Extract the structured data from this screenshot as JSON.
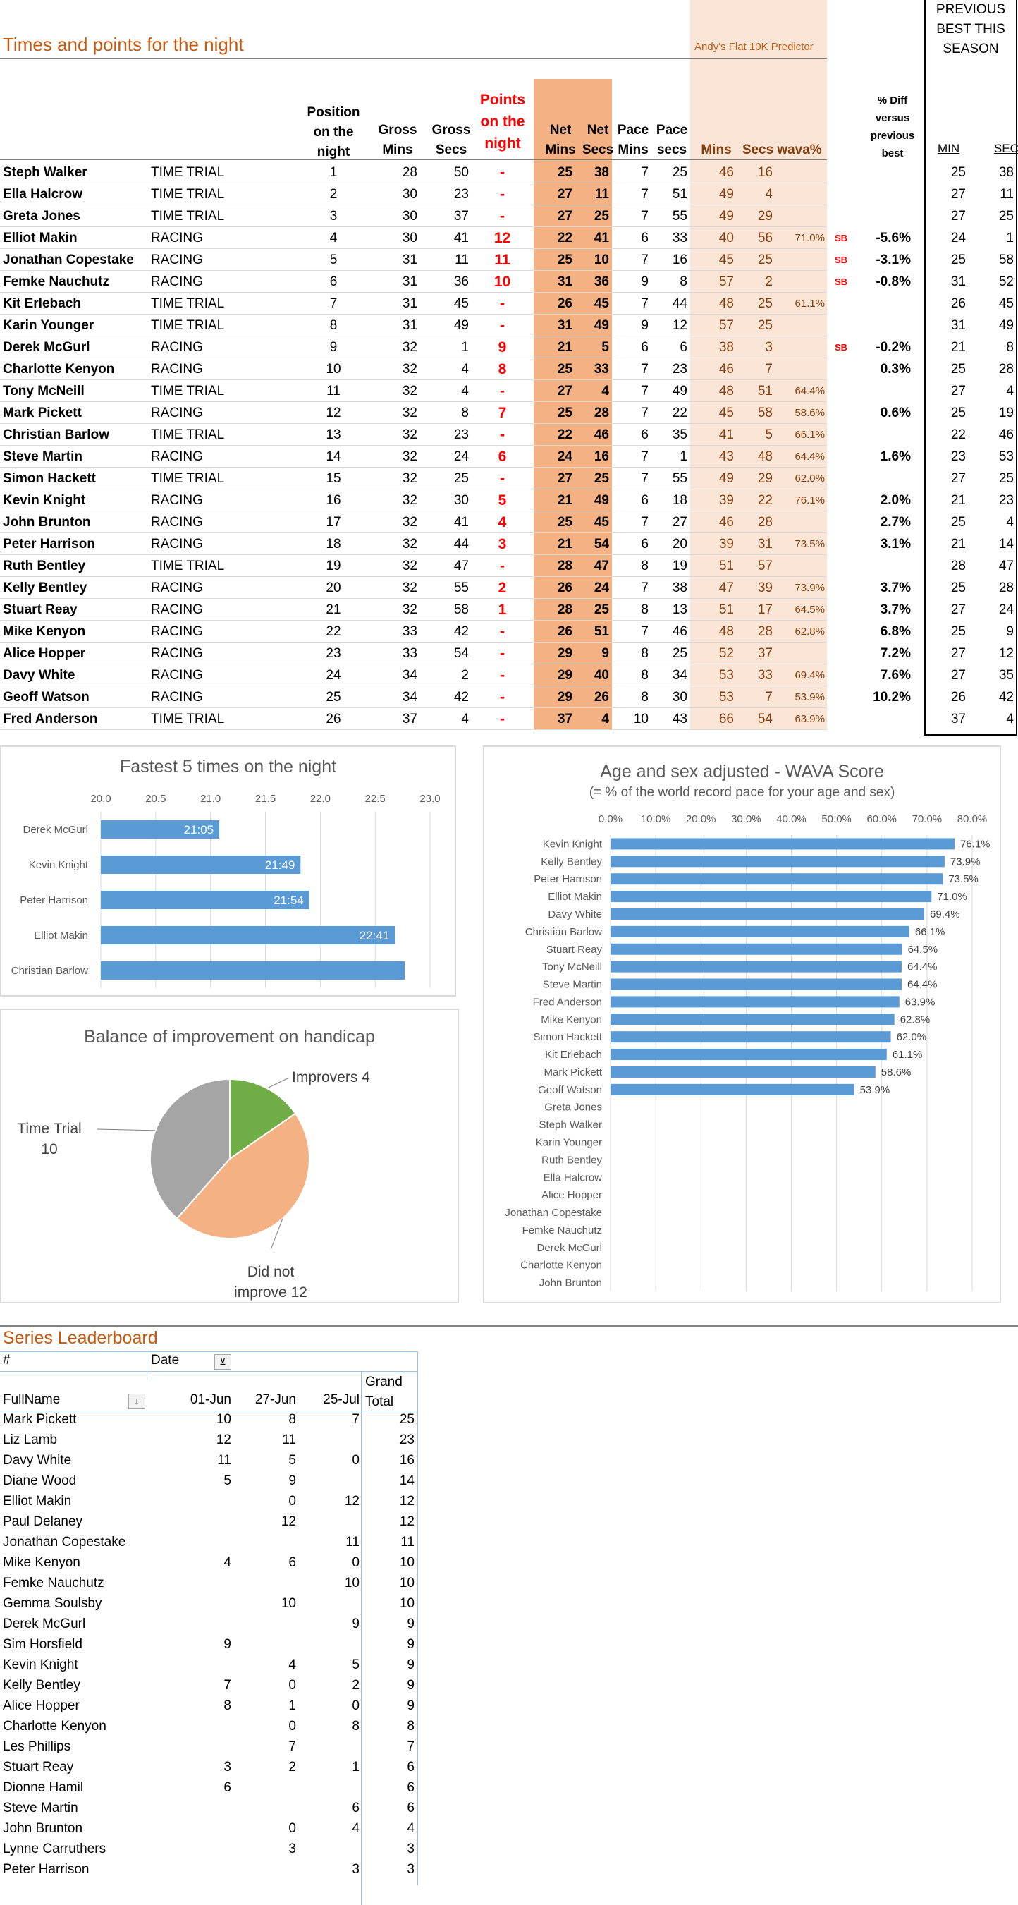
{
  "header": {
    "title": "Times and points for the night",
    "predictor": "Andy's Flat 10K Predictor",
    "prev_best": "PREVIOUS\nBEST THIS\nSEASON"
  },
  "columns": {
    "position": "Position\non the\nnight",
    "gross_mins": "Gross\nMins",
    "gross_secs": "Gross\nSecs",
    "points": "Points\non the\nnight",
    "net_mins": "Net\nMins",
    "net_secs": "Net\nSecs",
    "pace_mins": "Pace\nMins",
    "pace_secs": "Pace\nsecs",
    "pred_mins": "Mins",
    "pred_secs": "Secs",
    "wava": "wava%",
    "diff": "% Diff\nversus\nprevious\nbest",
    "min": "MIN",
    "sec": "SEC"
  },
  "colors": {
    "accent": "#c55a11",
    "net_fill": "#f4b183",
    "pred_fill": "#fbe5d6",
    "bar_blue": "#5b9bd5",
    "pie_green": "#70ad47",
    "pie_orange": "#f4b183",
    "pie_grey": "#a5a5a5"
  },
  "results": [
    {
      "name": "Steph Walker",
      "type": "TIME TRIAL",
      "pos": "1",
      "gm": "28",
      "gs": "50",
      "pts": "-",
      "nm": "25",
      "ns": "38",
      "pm": "7",
      "ps": "25",
      "prm": "46",
      "prs": "16",
      "wava": "",
      "sb": "",
      "diff": "",
      "min": "25",
      "sec": "38"
    },
    {
      "name": "Ella Halcrow",
      "type": "TIME TRIAL",
      "pos": "2",
      "gm": "30",
      "gs": "23",
      "pts": "-",
      "nm": "27",
      "ns": "11",
      "pm": "7",
      "ps": "51",
      "prm": "49",
      "prs": "4",
      "wava": "",
      "sb": "",
      "diff": "",
      "min": "27",
      "sec": "11"
    },
    {
      "name": "Greta Jones",
      "type": "TIME TRIAL",
      "pos": "3",
      "gm": "30",
      "gs": "37",
      "pts": "-",
      "nm": "27",
      "ns": "25",
      "pm": "7",
      "ps": "55",
      "prm": "49",
      "prs": "29",
      "wava": "",
      "sb": "",
      "diff": "",
      "min": "27",
      "sec": "25"
    },
    {
      "name": "Elliot Makin",
      "type": "RACING",
      "pos": "4",
      "gm": "30",
      "gs": "41",
      "pts": "12",
      "nm": "22",
      "ns": "41",
      "pm": "6",
      "ps": "33",
      "prm": "40",
      "prs": "56",
      "wava": "71.0%",
      "sb": "SB",
      "diff": "-5.6%",
      "min": "24",
      "sec": "1"
    },
    {
      "name": "Jonathan Copestake",
      "type": "RACING",
      "pos": "5",
      "gm": "31",
      "gs": "11",
      "pts": "11",
      "nm": "25",
      "ns": "10",
      "pm": "7",
      "ps": "16",
      "prm": "45",
      "prs": "25",
      "wava": "",
      "sb": "SB",
      "diff": "-3.1%",
      "min": "25",
      "sec": "58"
    },
    {
      "name": "Femke Nauchutz",
      "type": "RACING",
      "pos": "6",
      "gm": "31",
      "gs": "36",
      "pts": "10",
      "nm": "31",
      "ns": "36",
      "pm": "9",
      "ps": "8",
      "prm": "57",
      "prs": "2",
      "wava": "",
      "sb": "SB",
      "diff": "-0.8%",
      "min": "31",
      "sec": "52"
    },
    {
      "name": "Kit Erlebach",
      "type": "TIME TRIAL",
      "pos": "7",
      "gm": "31",
      "gs": "45",
      "pts": "-",
      "nm": "26",
      "ns": "45",
      "pm": "7",
      "ps": "44",
      "prm": "48",
      "prs": "25",
      "wava": "61.1%",
      "sb": "",
      "diff": "",
      "min": "26",
      "sec": "45"
    },
    {
      "name": "Karin Younger",
      "type": "TIME TRIAL",
      "pos": "8",
      "gm": "31",
      "gs": "49",
      "pts": "-",
      "nm": "31",
      "ns": "49",
      "pm": "9",
      "ps": "12",
      "prm": "57",
      "prs": "25",
      "wava": "",
      "sb": "",
      "diff": "",
      "min": "31",
      "sec": "49"
    },
    {
      "name": "Derek McGurl",
      "type": "RACING",
      "pos": "9",
      "gm": "32",
      "gs": "1",
      "pts": "9",
      "nm": "21",
      "ns": "5",
      "pm": "6",
      "ps": "6",
      "prm": "38",
      "prs": "3",
      "wava": "",
      "sb": "SB",
      "diff": "-0.2%",
      "min": "21",
      "sec": "8"
    },
    {
      "name": "Charlotte Kenyon",
      "type": "RACING",
      "pos": "10",
      "gm": "32",
      "gs": "4",
      "pts": "8",
      "nm": "25",
      "ns": "33",
      "pm": "7",
      "ps": "23",
      "prm": "46",
      "prs": "7",
      "wava": "",
      "sb": "",
      "diff": "0.3%",
      "min": "25",
      "sec": "28"
    },
    {
      "name": "Tony McNeill",
      "type": "TIME TRIAL",
      "pos": "11",
      "gm": "32",
      "gs": "4",
      "pts": "-",
      "nm": "27",
      "ns": "4",
      "pm": "7",
      "ps": "49",
      "prm": "48",
      "prs": "51",
      "wava": "64.4%",
      "sb": "",
      "diff": "",
      "min": "27",
      "sec": "4"
    },
    {
      "name": "Mark Pickett",
      "type": "RACING",
      "pos": "12",
      "gm": "32",
      "gs": "8",
      "pts": "7",
      "nm": "25",
      "ns": "28",
      "pm": "7",
      "ps": "22",
      "prm": "45",
      "prs": "58",
      "wava": "58.6%",
      "sb": "",
      "diff": "0.6%",
      "min": "25",
      "sec": "19"
    },
    {
      "name": "Christian Barlow",
      "type": "TIME TRIAL",
      "pos": "13",
      "gm": "32",
      "gs": "23",
      "pts": "-",
      "nm": "22",
      "ns": "46",
      "pm": "6",
      "ps": "35",
      "prm": "41",
      "prs": "5",
      "wava": "66.1%",
      "sb": "",
      "diff": "",
      "min": "22",
      "sec": "46"
    },
    {
      "name": "Steve Martin",
      "type": "RACING",
      "pos": "14",
      "gm": "32",
      "gs": "24",
      "pts": "6",
      "nm": "24",
      "ns": "16",
      "pm": "7",
      "ps": "1",
      "prm": "43",
      "prs": "48",
      "wava": "64.4%",
      "sb": "",
      "diff": "1.6%",
      "min": "23",
      "sec": "53"
    },
    {
      "name": "Simon Hackett",
      "type": "TIME TRIAL",
      "pos": "15",
      "gm": "32",
      "gs": "25",
      "pts": "-",
      "nm": "27",
      "ns": "25",
      "pm": "7",
      "ps": "55",
      "prm": "49",
      "prs": "29",
      "wava": "62.0%",
      "sb": "",
      "diff": "",
      "min": "27",
      "sec": "25"
    },
    {
      "name": "Kevin Knight",
      "type": "RACING",
      "pos": "16",
      "gm": "32",
      "gs": "30",
      "pts": "5",
      "nm": "21",
      "ns": "49",
      "pm": "6",
      "ps": "18",
      "prm": "39",
      "prs": "22",
      "wava": "76.1%",
      "sb": "",
      "diff": "2.0%",
      "min": "21",
      "sec": "23"
    },
    {
      "name": "John Brunton",
      "type": "RACING",
      "pos": "17",
      "gm": "32",
      "gs": "41",
      "pts": "4",
      "nm": "25",
      "ns": "45",
      "pm": "7",
      "ps": "27",
      "prm": "46",
      "prs": "28",
      "wava": "",
      "sb": "",
      "diff": "2.7%",
      "min": "25",
      "sec": "4"
    },
    {
      "name": "Peter Harrison",
      "type": "RACING",
      "pos": "18",
      "gm": "32",
      "gs": "44",
      "pts": "3",
      "nm": "21",
      "ns": "54",
      "pm": "6",
      "ps": "20",
      "prm": "39",
      "prs": "31",
      "wava": "73.5%",
      "sb": "",
      "diff": "3.1%",
      "min": "21",
      "sec": "14"
    },
    {
      "name": "Ruth Bentley",
      "type": "TIME TRIAL",
      "pos": "19",
      "gm": "32",
      "gs": "47",
      "pts": "-",
      "nm": "28",
      "ns": "47",
      "pm": "8",
      "ps": "19",
      "prm": "51",
      "prs": "57",
      "wava": "",
      "sb": "",
      "diff": "",
      "min": "28",
      "sec": "47"
    },
    {
      "name": "Kelly Bentley",
      "type": "RACING",
      "pos": "20",
      "gm": "32",
      "gs": "55",
      "pts": "2",
      "nm": "26",
      "ns": "24",
      "pm": "7",
      "ps": "38",
      "prm": "47",
      "prs": "39",
      "wava": "73.9%",
      "sb": "",
      "diff": "3.7%",
      "min": "25",
      "sec": "28"
    },
    {
      "name": "Stuart Reay",
      "type": "RACING",
      "pos": "21",
      "gm": "32",
      "gs": "58",
      "pts": "1",
      "nm": "28",
      "ns": "25",
      "pm": "8",
      "ps": "13",
      "prm": "51",
      "prs": "17",
      "wava": "64.5%",
      "sb": "",
      "diff": "3.7%",
      "min": "27",
      "sec": "24"
    },
    {
      "name": "Mike Kenyon",
      "type": "RACING",
      "pos": "22",
      "gm": "33",
      "gs": "42",
      "pts": "-",
      "nm": "26",
      "ns": "51",
      "pm": "7",
      "ps": "46",
      "prm": "48",
      "prs": "28",
      "wava": "62.8%",
      "sb": "",
      "diff": "6.8%",
      "min": "25",
      "sec": "9"
    },
    {
      "name": "Alice Hopper",
      "type": "RACING",
      "pos": "23",
      "gm": "33",
      "gs": "54",
      "pts": "-",
      "nm": "29",
      "ns": "9",
      "pm": "8",
      "ps": "25",
      "prm": "52",
      "prs": "37",
      "wava": "",
      "sb": "",
      "diff": "7.2%",
      "min": "27",
      "sec": "12"
    },
    {
      "name": "Davy White",
      "type": "RACING",
      "pos": "24",
      "gm": "34",
      "gs": "2",
      "pts": "-",
      "nm": "29",
      "ns": "40",
      "pm": "8",
      "ps": "34",
      "prm": "53",
      "prs": "33",
      "wava": "69.4%",
      "sb": "",
      "diff": "7.6%",
      "min": "27",
      "sec": "35"
    },
    {
      "name": "Geoff Watson",
      "type": "RACING",
      "pos": "25",
      "gm": "34",
      "gs": "42",
      "pts": "-",
      "nm": "29",
      "ns": "26",
      "pm": "8",
      "ps": "30",
      "prm": "53",
      "prs": "7",
      "wava": "53.9%",
      "sb": "",
      "diff": "10.2%",
      "min": "26",
      "sec": "42"
    },
    {
      "name": "Fred Anderson",
      "type": "TIME TRIAL",
      "pos": "26",
      "gm": "37",
      "gs": "4",
      "pts": "-",
      "nm": "37",
      "ns": "4",
      "pm": "10",
      "ps": "43",
      "prm": "66",
      "prs": "54",
      "wava": "63.9%",
      "sb": "",
      "diff": "",
      "min": "37",
      "sec": "4"
    }
  ],
  "chart_data": [
    {
      "type": "bar",
      "title": "Fastest 5 times on the night",
      "orientation": "horizontal",
      "categories": [
        "Derek McGurl",
        "Kevin Knight",
        "Peter Harrison",
        "Elliot Makin",
        "Christian Barlow"
      ],
      "values": [
        21.08,
        21.82,
        21.9,
        22.68,
        22.77
      ],
      "data_labels": [
        "21:05",
        "21:49",
        "21:54",
        "22:41",
        ""
      ],
      "xlim": [
        20.0,
        23.0
      ],
      "ticks": [
        "20.0",
        "20.5",
        "21.0",
        "21.5",
        "22.0",
        "22.5",
        "23.0"
      ],
      "grid": true
    },
    {
      "type": "pie",
      "title": "Balance of improvement on handicap",
      "slices": [
        {
          "label": "Improvers 4",
          "value": 4
        },
        {
          "label": "Did not\nimprove 12",
          "value": 12
        },
        {
          "label": "Time Trial\n10",
          "value": 10
        }
      ]
    },
    {
      "type": "bar",
      "title": "Age and sex adjusted - WAVA Score",
      "subtitle": "(= % of the world record pace for your age and sex)",
      "orientation": "horizontal",
      "categories": [
        "Kevin Knight",
        "Kelly Bentley",
        "Peter Harrison",
        "Elliot Makin",
        "Davy White",
        "Christian Barlow",
        "Stuart Reay",
        "Tony McNeill",
        "Steve Martin",
        "Fred Anderson",
        "Mike Kenyon",
        "Simon Hackett",
        "Kit Erlebach",
        "Mark Pickett",
        "Geoff Watson",
        "Greta Jones",
        "Steph Walker",
        "Karin Younger",
        "Ruth Bentley",
        "Ella Halcrow",
        "Alice Hopper",
        "Jonathan Copestake",
        "Femke Nauchutz",
        "Derek McGurl",
        "Charlotte Kenyon",
        "John Brunton"
      ],
      "values": [
        76.1,
        73.9,
        73.5,
        71.0,
        69.4,
        66.1,
        64.5,
        64.4,
        64.4,
        63.9,
        62.8,
        62.0,
        61.1,
        58.6,
        53.9,
        null,
        null,
        null,
        null,
        null,
        null,
        null,
        null,
        null,
        null,
        null
      ],
      "data_labels": [
        "76.1%",
        "73.9%",
        "73.5%",
        "71.0%",
        "69.4%",
        "66.1%",
        "64.5%",
        "64.4%",
        "64.4%",
        "63.9%",
        "62.8%",
        "62.0%",
        "61.1%",
        "58.6%",
        "53.9%",
        "",
        "",
        "",
        "",
        "",
        "",
        "",
        "",
        "",
        "",
        ""
      ],
      "xlim": [
        0,
        80
      ],
      "ticks": [
        "0.0%",
        "10.0%",
        "20.0%",
        "30.0%",
        "40.0%",
        "50.0%",
        "60.0%",
        "70.0%",
        "80.0%"
      ],
      "grid": true
    }
  ],
  "leaderboard": {
    "title": "Series Leaderboard",
    "hash": "#",
    "date_label": "Date",
    "fullname_label": "FullName",
    "cols": [
      "01-Jun",
      "27-Jun",
      "25-Jul"
    ],
    "grand_total": "Grand\nTotal",
    "rows": [
      {
        "name": "Mark Pickett",
        "v": [
          "10",
          "8",
          "7"
        ],
        "t": "25"
      },
      {
        "name": "Liz Lamb",
        "v": [
          "12",
          "11",
          ""
        ],
        "t": "23"
      },
      {
        "name": "Davy White",
        "v": [
          "11",
          "5",
          "0"
        ],
        "t": "16"
      },
      {
        "name": "Diane Wood",
        "v": [
          "5",
          "9",
          ""
        ],
        "t": "14"
      },
      {
        "name": "Elliot Makin",
        "v": [
          "",
          "0",
          "12"
        ],
        "t": "12"
      },
      {
        "name": "Paul Delaney",
        "v": [
          "",
          "12",
          ""
        ],
        "t": "12"
      },
      {
        "name": "Jonathan Copestake",
        "v": [
          "",
          "",
          "11"
        ],
        "t": "11"
      },
      {
        "name": "Mike Kenyon",
        "v": [
          "4",
          "6",
          "0"
        ],
        "t": "10"
      },
      {
        "name": "Femke Nauchutz",
        "v": [
          "",
          "",
          "10"
        ],
        "t": "10"
      },
      {
        "name": "Gemma Soulsby",
        "v": [
          "",
          "10",
          ""
        ],
        "t": "10"
      },
      {
        "name": "Derek McGurl",
        "v": [
          "",
          "",
          "9"
        ],
        "t": "9"
      },
      {
        "name": "Sim Horsfield",
        "v": [
          "9",
          "",
          ""
        ],
        "t": "9"
      },
      {
        "name": "Kevin Knight",
        "v": [
          "",
          "4",
          "5"
        ],
        "t": "9"
      },
      {
        "name": "Kelly Bentley",
        "v": [
          "7",
          "0",
          "2"
        ],
        "t": "9"
      },
      {
        "name": "Alice Hopper",
        "v": [
          "8",
          "1",
          "0"
        ],
        "t": "9"
      },
      {
        "name": "Charlotte Kenyon",
        "v": [
          "",
          "0",
          "8"
        ],
        "t": "8"
      },
      {
        "name": "Les Phillips",
        "v": [
          "",
          "7",
          ""
        ],
        "t": "7"
      },
      {
        "name": "Stuart Reay",
        "v": [
          "3",
          "2",
          "1"
        ],
        "t": "6"
      },
      {
        "name": "Dionne Hamil",
        "v": [
          "6",
          "",
          ""
        ],
        "t": "6"
      },
      {
        "name": "Steve Martin",
        "v": [
          "",
          "",
          "6"
        ],
        "t": "6"
      },
      {
        "name": "John Brunton",
        "v": [
          "",
          "0",
          "4"
        ],
        "t": "4"
      },
      {
        "name": "Lynne Carruthers",
        "v": [
          "",
          "3",
          ""
        ],
        "t": "3"
      },
      {
        "name": "Peter Harrison",
        "v": [
          "",
          "",
          "3"
        ],
        "t": "3"
      }
    ]
  }
}
